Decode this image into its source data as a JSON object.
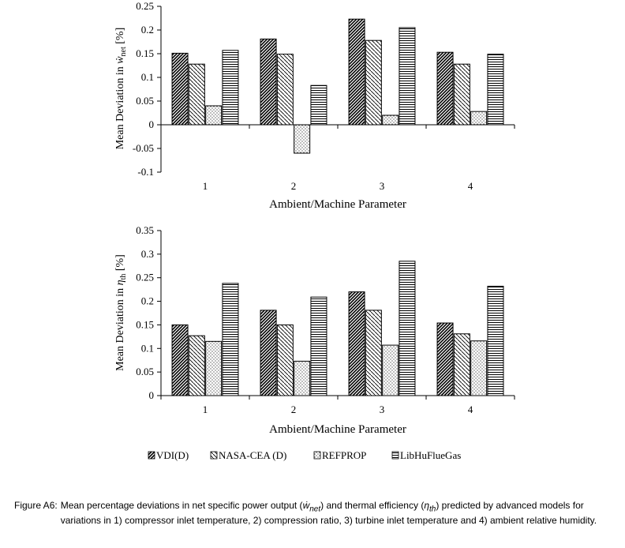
{
  "chart_data": [
    {
      "type": "bar",
      "title": "",
      "xlabel": "Ambient/Machine Parameter",
      "ylabel": {
        "prefix": "Mean Deviation in ",
        "symbol": "ẇ",
        "sub": "net",
        "suffix": " [%]"
      },
      "categories": [
        "1",
        "2",
        "3",
        "4"
      ],
      "ylim": [
        -0.1,
        0.25
      ],
      "yticks": [
        "-0.1",
        "-0.05",
        "0",
        "0.05",
        "0.1",
        "0.15",
        "0.2",
        "0.25"
      ],
      "grid": false,
      "series": [
        {
          "name": "VDI(D)",
          "values": [
            0.151,
            0.181,
            0.223,
            0.153
          ]
        },
        {
          "name": "NASA-CEA (D)",
          "values": [
            0.128,
            0.149,
            0.178,
            0.128
          ]
        },
        {
          "name": "REFPROP",
          "values": [
            0.04,
            -0.06,
            0.02,
            0.028
          ]
        },
        {
          "name": "LibHuFlueGas",
          "values": [
            0.157,
            0.083,
            0.205,
            0.149
          ]
        }
      ]
    },
    {
      "type": "bar",
      "title": "",
      "xlabel": "Ambient/Machine Parameter",
      "ylabel": {
        "prefix": "Mean Deviation in ",
        "symbol": "η",
        "sub": "th",
        "suffix": " [%]"
      },
      "categories": [
        "1",
        "2",
        "3",
        "4"
      ],
      "ylim": [
        0,
        0.35
      ],
      "yticks": [
        "0",
        "0.05",
        "0.1",
        "0.15",
        "0.2",
        "0.25",
        "0.3",
        "0.35"
      ],
      "grid": false,
      "series": [
        {
          "name": "VDI(D)",
          "values": [
            0.15,
            0.181,
            0.22,
            0.154
          ]
        },
        {
          "name": "NASA-CEA (D)",
          "values": [
            0.127,
            0.15,
            0.181,
            0.131
          ]
        },
        {
          "name": "REFPROP",
          "values": [
            0.115,
            0.073,
            0.107,
            0.116
          ]
        },
        {
          "name": "LibHuFlueGas",
          "values": [
            0.238,
            0.209,
            0.285,
            0.232
          ]
        }
      ]
    }
  ],
  "legend": {
    "placement": "bottom",
    "entries": [
      "VDI(D)",
      "NASA-CEA (D)",
      "REFPROP",
      "LibHuFlueGas"
    ]
  },
  "caption": {
    "label": "Figure A6:",
    "part1": "Mean percentage deviations in net specific power output (",
    "sym1": "ẇ",
    "sub1": "net",
    "part2": ") and thermal efficiency (",
    "sym2": "η",
    "sub2": "th",
    "part3": ") predicted by advanced models for variations in 1) compressor inlet temperature, 2) compression ratio, 3) turbine inlet temperature and 4) ambient relative humidity."
  }
}
